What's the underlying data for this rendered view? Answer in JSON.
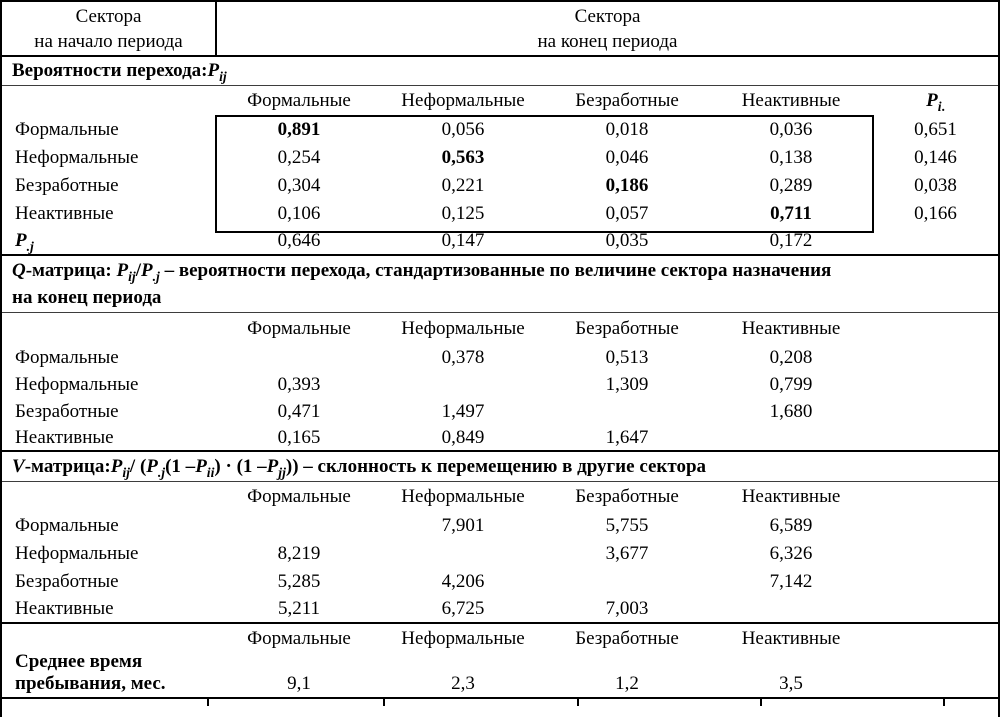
{
  "top_header": {
    "start_sector": "Сектора<br>на начало периода",
    "end_sector": "Сектора<br>на конец периода"
  },
  "columns": [
    "Формальные",
    "Неформальные",
    "Безработные",
    "Неактивные"
  ],
  "p_matrix": {
    "title": "Вероятности перехода: <i>P<sub>ij</sub></i>",
    "pi_header": "<i>P<sub>i</sub></i><sub>.</sub>",
    "rows": [
      {
        "label": "Формальные",
        "values": [
          "0,891",
          "0,056",
          "0,018",
          "0,036"
        ],
        "pi": "0,651"
      },
      {
        "label": "Неформальные",
        "values": [
          "0,254",
          "0,563",
          "0,046",
          "0,138"
        ],
        "pi": "0,146"
      },
      {
        "label": "Безработные",
        "values": [
          "0,304",
          "0,221",
          "0,186",
          "0,289"
        ],
        "pi": "0,038"
      },
      {
        "label": "Неактивные",
        "values": [
          "0,106",
          "0,125",
          "0,057",
          "0,711"
        ],
        "pi": "0,166"
      }
    ],
    "pj_row": {
      "label": "<i>P<sub>.j</sub></i>",
      "values": [
        "0,646",
        "0,147",
        "0,035",
        "0,172"
      ]
    }
  },
  "q_matrix": {
    "title": "<i>Q</i>-матрица: <i>P<sub>ij</sub></i>/<i>P<sub>.j</sub></i> – вероятности перехода, стандартизованные по величине сектора назначения<br>на конец периода",
    "rows": [
      {
        "label": "Формальные",
        "values": [
          "",
          "0,378",
          "0,513",
          "0,208"
        ]
      },
      {
        "label": "Неформальные",
        "values": [
          "0,393",
          "",
          "1,309",
          "0,799"
        ]
      },
      {
        "label": "Безработные",
        "values": [
          "0,471",
          "1,497",
          "",
          "1,680"
        ]
      },
      {
        "label": "Неактивные",
        "values": [
          "0,165",
          "0,849",
          "1,647",
          ""
        ]
      }
    ]
  },
  "v_matrix": {
    "title": "<i>V</i>-матрица: <i>P<sub>ij</sub></i> / (<i>P<sub>.j</sub></i>(1 – <i>P<sub>ii</sub></i>) · (1 – <i>P<sub>jj</sub></i>)) – склонность к перемещению в другие сектора",
    "rows": [
      {
        "label": "Формальные",
        "values": [
          "",
          "7,901",
          "5,755",
          "6,589"
        ]
      },
      {
        "label": "Неформальные",
        "values": [
          "8,219",
          "",
          "3,677",
          "6,326"
        ]
      },
      {
        "label": "Безработные",
        "values": [
          "5,285",
          "4,206",
          "",
          "7,142"
        ]
      },
      {
        "label": "Неактивные",
        "values": [
          "5,211",
          "6,725",
          "7,003",
          ""
        ]
      }
    ]
  },
  "duration": {
    "label": "Среднее время<br>пребывания, мес.",
    "values": [
      "9,1",
      "2,3",
      "1,2",
      "3,5"
    ]
  }
}
